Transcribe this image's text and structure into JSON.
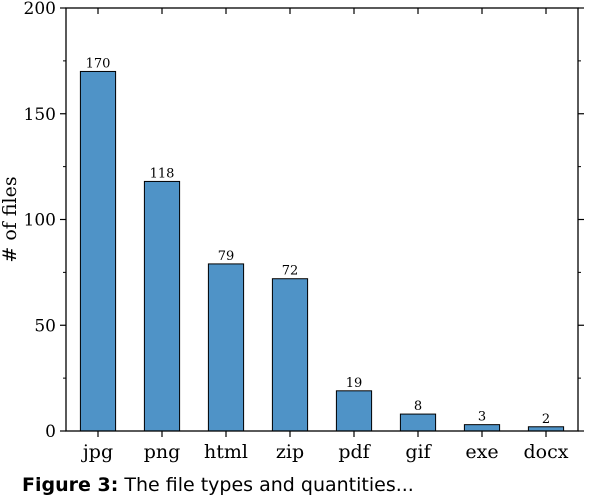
{
  "chart_data": {
    "type": "bar",
    "categories": [
      "jpg",
      "png",
      "html",
      "zip",
      "pdf",
      "gif",
      "exe",
      "docx"
    ],
    "values": [
      170,
      118,
      79,
      72,
      19,
      8,
      3,
      2
    ],
    "data_labels": [
      "170",
      "118",
      "79",
      "72",
      "19",
      "8",
      "3",
      "2"
    ],
    "ylabel": "# of files",
    "ylim": [
      0,
      200
    ],
    "yticks": [
      0,
      50,
      100,
      150,
      200
    ],
    "ytick_labels": [
      "0",
      "50",
      "100",
      "150",
      "200"
    ],
    "bar_color": "#4f93c7",
    "grid": false,
    "legend": "none"
  },
  "caption": {
    "label": "Figure 3:",
    "text": "The file types and quantities..."
  }
}
